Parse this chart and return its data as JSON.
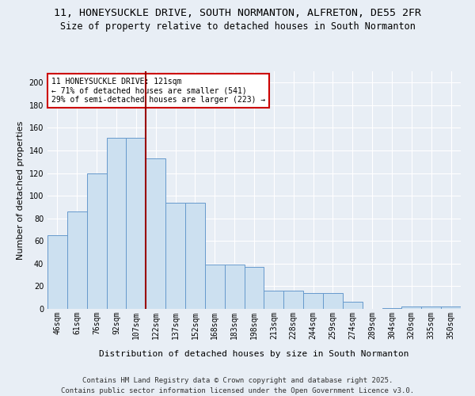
{
  "title_line1": "11, HONEYSUCKLE DRIVE, SOUTH NORMANTON, ALFRETON, DE55 2FR",
  "title_line2": "Size of property relative to detached houses in South Normanton",
  "xlabel": "Distribution of detached houses by size in South Normanton",
  "ylabel": "Number of detached properties",
  "bar_labels": [
    "46sqm",
    "61sqm",
    "76sqm",
    "92sqm",
    "107sqm",
    "122sqm",
    "137sqm",
    "152sqm",
    "168sqm",
    "183sqm",
    "198sqm",
    "213sqm",
    "228sqm",
    "244sqm",
    "259sqm",
    "274sqm",
    "289sqm",
    "304sqm",
    "320sqm",
    "335sqm",
    "350sqm"
  ],
  "bar_heights": [
    65,
    86,
    120,
    151,
    151,
    133,
    94,
    94,
    39,
    39,
    37,
    16,
    16,
    14,
    14,
    6,
    0,
    1,
    2,
    2,
    2
  ],
  "bar_color": "#cce0f0",
  "bar_edge_color": "#6699cc",
  "vline_color": "#990000",
  "annotation_title": "11 HONEYSUCKLE DRIVE: 121sqm",
  "annotation_line2": "← 71% of detached houses are smaller (541)",
  "annotation_line3": "29% of semi-detached houses are larger (223) →",
  "annotation_box_color": "#ffffff",
  "annotation_box_edge": "#cc0000",
  "ylim": [
    0,
    210
  ],
  "yticks": [
    0,
    20,
    40,
    60,
    80,
    100,
    120,
    140,
    160,
    180,
    200
  ],
  "footer_line1": "Contains HM Land Registry data © Crown copyright and database right 2025.",
  "footer_line2": "Contains public sector information licensed under the Open Government Licence v3.0.",
  "bg_color": "#e8eef5",
  "plot_bg_color": "#e8eef5",
  "grid_color": "#ffffff",
  "title_fontsize": 9.5,
  "subtitle_fontsize": 8.5,
  "axis_label_fontsize": 8,
  "tick_fontsize": 7,
  "footer_fontsize": 6.5
}
